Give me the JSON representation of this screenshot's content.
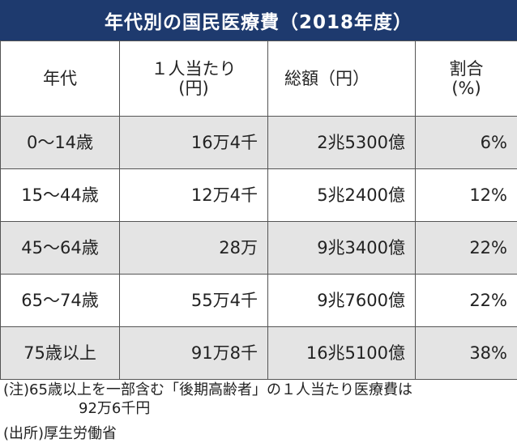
{
  "title": "年代別の国民医療費（2018年度）",
  "header": {
    "age": "年代",
    "per_capita_line1": "１人当たり",
    "per_capita_line2": "(円)",
    "total": "総額（円）",
    "share_line1": "割合",
    "share_line2": "(%)"
  },
  "rows": [
    {
      "age": "0〜14歳",
      "per_capita": "16万4千",
      "total": "2兆5300億",
      "share": "6%"
    },
    {
      "age": "15〜44歳",
      "per_capita": "12万4千",
      "total": "5兆2400億",
      "share": "12%"
    },
    {
      "age": "45〜64歳",
      "per_capita": "28万",
      "total": "9兆3400億",
      "share": "22%"
    },
    {
      "age": "65〜74歳",
      "per_capita": "55万4千",
      "total": "9兆7600億",
      "share": "22%"
    },
    {
      "age": "75歳以上",
      "per_capita": "91万8千",
      "total": "16兆5100億",
      "share": "38%"
    }
  ],
  "notes": {
    "note_prefix": "(注)",
    "note_line1": "65歳以上を一部含む「後期高齢者」の１人当たり医療費は",
    "note_line2": "92万6千円",
    "source_prefix": "(出所)",
    "source_text": "厚生労働省"
  },
  "colors": {
    "title_bg": "#1e3a6e",
    "row_shade": "#e4e4e4"
  }
}
